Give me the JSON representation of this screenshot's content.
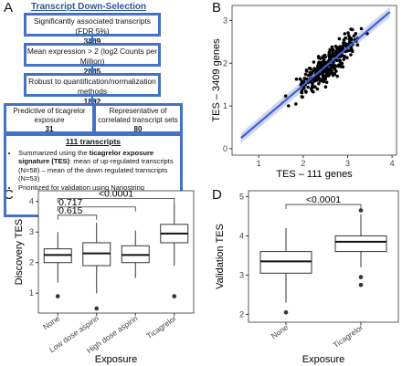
{
  "panels": {
    "a": "A",
    "b": "B",
    "c": "C",
    "d": "D"
  },
  "flowchart": {
    "title": "Transcript Down-Selection",
    "step1": {
      "label": "Significantly associated transcripts (FDR 5%)",
      "value": "3409"
    },
    "step2": {
      "label": "Mean expression > 2 (log2 Counts per Million)",
      "value": "2005"
    },
    "step3": {
      "label": "Robust to quantification/normalization methods",
      "value": "1892"
    },
    "step4a": {
      "label": "Predictive of ticagrelor exposure",
      "value": "31"
    },
    "step4b": {
      "label": "Representative of correlated transcript sets",
      "value": "80"
    },
    "final": {
      "title": "111 transcripts",
      "b1_pre": "Summarized using the ",
      "b1_bold": "ticagrelor exposure signature (TES)",
      "b1_post": ": mean of up-regulated transcripts (N=58) – mean of the down regulated transcripts (N=53)",
      "b2": "Prioritized for validation using Nanostring"
    }
  },
  "chart_data": [
    {
      "panel": "B",
      "type": "scatter",
      "xlabel": "TES – 111 genes",
      "ylabel": "TES – 3409 genes",
      "xlim": [
        0.4,
        4.1
      ],
      "ylim": [
        -0.15,
        3.35
      ],
      "xticks": [
        1,
        2,
        3,
        4
      ],
      "yticks": [
        0,
        1,
        2,
        3
      ],
      "fit_line": {
        "x": [
          0.6,
          3.95
        ],
        "y": [
          0.25,
          3.2
        ],
        "color": "#3b5fd9"
      },
      "point_color": "#000000",
      "n_points_approx": 300
    },
    {
      "panel": "C",
      "type": "box",
      "xlabel": "Exposure",
      "ylabel": "Discovery TES",
      "ylim": [
        0.35,
        4.35
      ],
      "yticks": [
        1,
        2,
        3,
        4
      ],
      "categories": [
        "None",
        "Low dose aspirin",
        "High dose aspirin",
        "Ticagrelor"
      ],
      "boxes": [
        {
          "q1": 2.0,
          "median": 2.25,
          "q3": 2.45,
          "lower_whisker": 1.35,
          "upper_whisker": 3.0,
          "outliers": [
            0.9
          ]
        },
        {
          "q1": 1.9,
          "median": 2.3,
          "q3": 2.65,
          "lower_whisker": 1.0,
          "upper_whisker": 3.3,
          "outliers": [
            0.5
          ]
        },
        {
          "q1": 2.0,
          "median": 2.25,
          "q3": 2.55,
          "lower_whisker": 1.5,
          "upper_whisker": 3.05,
          "outliers": []
        },
        {
          "q1": 2.65,
          "median": 2.95,
          "q3": 3.25,
          "lower_whisker": 1.9,
          "upper_whisker": 3.95,
          "outliers": [
            0.9
          ]
        }
      ],
      "annotations": [
        {
          "from": 0,
          "to": 1,
          "label": "0.615",
          "y": 3.55
        },
        {
          "from": 0,
          "to": 2,
          "label": "0.717",
          "y": 3.82
        },
        {
          "from": 0,
          "to": 3,
          "label": "<0.0001",
          "y": 4.1
        }
      ]
    },
    {
      "panel": "D",
      "type": "box",
      "xlabel": "Exposure",
      "ylabel": "Validation TES",
      "ylim": [
        1.8,
        5.15
      ],
      "yticks": [
        2,
        3,
        4,
        5
      ],
      "categories": [
        "None",
        "Ticagrelor"
      ],
      "boxes": [
        {
          "q1": 3.05,
          "median": 3.35,
          "q3": 3.6,
          "lower_whisker": 2.3,
          "upper_whisker": 4.2,
          "outliers": [
            2.05
          ]
        },
        {
          "q1": 3.6,
          "median": 3.85,
          "q3": 4.0,
          "lower_whisker": 3.2,
          "upper_whisker": 4.55,
          "outliers": [
            4.65,
            2.95,
            2.75
          ]
        }
      ],
      "annotations": [
        {
          "from": 0,
          "to": 1,
          "label": "<0.0001",
          "y": 4.8
        }
      ]
    }
  ]
}
